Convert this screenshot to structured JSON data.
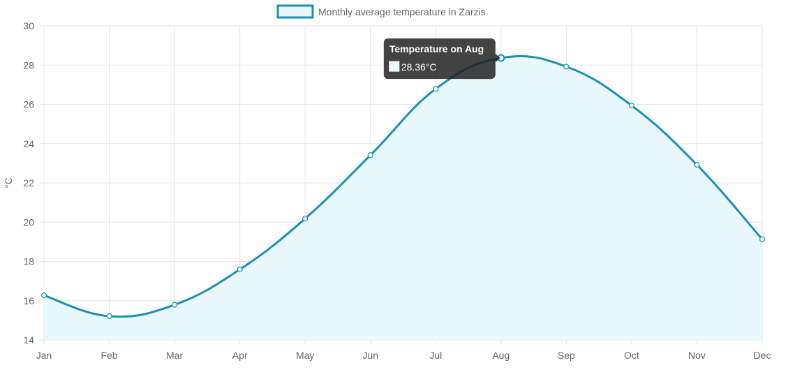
{
  "chart_data": {
    "type": "line",
    "categories": [
      "Jan",
      "Feb",
      "Mar",
      "Apr",
      "May",
      "Jun",
      "Jul",
      "Aug",
      "Sep",
      "Oct",
      "Nov",
      "Dec"
    ],
    "series": [
      {
        "name": "Monthly average temperature in Zarzis",
        "values": [
          16.27,
          15.21,
          15.79,
          17.59,
          20.18,
          23.41,
          26.79,
          28.36,
          27.92,
          25.94,
          22.92,
          19.13
        ]
      }
    ],
    "ylabel": "°C",
    "xlabel": "",
    "ylim": [
      14,
      30
    ],
    "y_ticks": [
      14,
      16,
      18,
      20,
      22,
      24,
      26,
      28,
      30
    ],
    "grid": true,
    "legend": "top-center",
    "fill": true,
    "colors": {
      "line": "#1c8fb5",
      "fill": "#e9f8fd",
      "grid": "#e5e5e5",
      "tooltip_bg": "#222222"
    },
    "tooltip": {
      "title": "Temperature on Aug",
      "body": "28.36°C",
      "point_index": 7
    }
  }
}
